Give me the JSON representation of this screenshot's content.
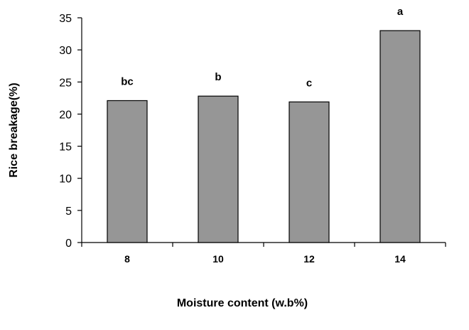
{
  "chart_data": {
    "type": "bar",
    "xlabel": "Moisture content (w.b%)",
    "ylabel": "Rice breakage(%)",
    "categories": [
      "8",
      "10",
      "12",
      "14"
    ],
    "values": [
      22.1,
      22.8,
      21.9,
      33.0
    ],
    "significance_letters": [
      "bc",
      "b",
      "c",
      "a"
    ],
    "ylim": [
      0,
      35
    ],
    "yticks": [
      0,
      5,
      10,
      15,
      20,
      25,
      30,
      35
    ],
    "grid": false,
    "legend": "none",
    "bar_color": "#969696",
    "bar_edge_color": "#000000"
  }
}
